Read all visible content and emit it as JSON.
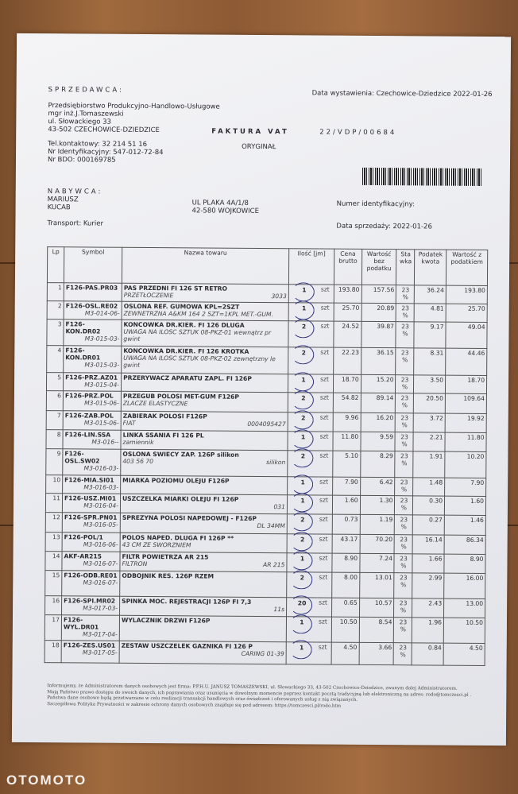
{
  "seller": {
    "heading": "SPRZEDAWCA:",
    "name": "Przedsiębiorstwo Produkcyjno-Handlowo-Usługowe",
    "owner": "mgr inż.J.Tomaszewski",
    "street": "ul. Słowackiego 33",
    "city": "43-502 CZECHOWICE-DZIEDZICE",
    "phone": "Tel.kontaktowy: 32 214 51 16",
    "nip": "Nr Identyfikacyjny: 547-012-72-84",
    "bdo": "Nr BDO: 000169785"
  },
  "issue_date": "Data wystawienia: Czechowice-Dziedzice 2022-01-26",
  "invoice": {
    "title": "FAKTURA VAT",
    "number": "22/VDP/00684",
    "copy": "ORYGINAŁ"
  },
  "buyer": {
    "heading": "NABYWCA:",
    "first_name": "MARIUSZ",
    "last_name": "KUCAB",
    "street": "UL PLAKA 4A/1/8",
    "city": "42-580 WOJKOWICE",
    "id_label": "Numer identyfikacyjny:",
    "transport": "Transport: Kurier",
    "sale_date": "Data sprzedaży: 2022-01-26"
  },
  "table": {
    "headers": [
      "Lp",
      "Symbol",
      "Nazwa towaru",
      "Ilość [jm]",
      "Cena brutto",
      "Wartość bez podatku",
      "Sta wka",
      "Podatek kwota",
      "Wartość z podatkiem"
    ],
    "rows": [
      {
        "lp": "1",
        "symbol": "F126-PAS.PR03",
        "code": "",
        "name": "PAS PRZEDNI FI 126 ST RETRO",
        "desc": "PRZETŁOCZENIE",
        "desc2": "3033",
        "qty": "1",
        "unit": "szt",
        "price": "193.80",
        "net": "157.56",
        "vat": "23 %",
        "tax": "36.24",
        "gross": "193.80"
      },
      {
        "lp": "2",
        "symbol": "F126-OSL.RE02",
        "code": "M3-014-06-",
        "name": "OSLONA REF. GUMOWA KPL=2SZT",
        "desc": "ZEWNETRZNA A&KM 164  2 SZT=1KPL MET.-GUM.",
        "desc2": "",
        "qty": "1",
        "unit": "szt",
        "price": "25.70",
        "net": "20.89",
        "vat": "23 %",
        "tax": "4.81",
        "gross": "25.70"
      },
      {
        "lp": "3",
        "symbol": "F126-KON.DR02",
        "code": "M3-015-03-",
        "name": "KONCOWKA DR.KIER. FI 126 DLUGA",
        "desc": "UWAGA NA ILOSC SZTUK  08-PKZ-01 wewnątrz pr gwint",
        "desc2": "",
        "qty": "2",
        "unit": "szt",
        "price": "24.52",
        "net": "39.87",
        "vat": "23 %",
        "tax": "9.17",
        "gross": "49.04"
      },
      {
        "lp": "4",
        "symbol": "F126-KON.DR01",
        "code": "M3-015-03-",
        "name": "KONCOWKA DR.KIER. FI 126 KROTKA",
        "desc": "UWAGA NA ILOSC SZTUK  08-PKZ-02 zewnętrzny le gwint",
        "desc2": "",
        "qty": "2",
        "unit": "szt",
        "price": "22.23",
        "net": "36.15",
        "vat": "23 %",
        "tax": "8.31",
        "gross": "44.46"
      },
      {
        "lp": "5",
        "symbol": "F126-PRZ.AZ01",
        "code": "M3-015-04-",
        "name": "PRZERYWACZ APARATU ZAPL. FI 126P",
        "desc": "",
        "desc2": "",
        "qty": "1",
        "unit": "szt",
        "price": "18.70",
        "net": "15.20",
        "vat": "23 %",
        "tax": "3.50",
        "gross": "18.70"
      },
      {
        "lp": "6",
        "symbol": "F126-PRZ.POL",
        "code": "M3-015-06-",
        "name": "PRZEGUB POLOSI MET-GUM F126P",
        "desc": "ZLACZE ELASTYCZNE",
        "desc2": "",
        "qty": "2",
        "unit": "szt",
        "price": "54.82",
        "net": "89.14",
        "vat": "23 %",
        "tax": "20.50",
        "gross": "109.64"
      },
      {
        "lp": "7",
        "symbol": "F126-ZAB.POL",
        "code": "M3-015-06-",
        "name": "ZABIERAK POLOSI F126P",
        "desc": "FIAT",
        "desc2": "0004095427",
        "qty": "2",
        "unit": "szt",
        "price": "9.96",
        "net": "16.20",
        "vat": "23 %",
        "tax": "3.72",
        "gross": "19.92"
      },
      {
        "lp": "8",
        "symbol": "F126-LIN.SSA",
        "code": "M3-016--",
        "name": "LINKA SSANIA FI 126 PL",
        "desc": "zamiennik",
        "desc2": "",
        "qty": "1",
        "unit": "szt",
        "price": "11.80",
        "net": "9.59",
        "vat": "23 %",
        "tax": "2.21",
        "gross": "11.80"
      },
      {
        "lp": "9",
        "symbol": "F126-OSL.SW02",
        "code": "M3-016-03-",
        "name": "OSLONA SWIECY ZAP. 126P silikon",
        "desc": "403 56 70",
        "desc2": "silikon",
        "qty": "2",
        "unit": "szt",
        "price": "5.10",
        "net": "8.29",
        "vat": "23 %",
        "tax": "1.91",
        "gross": "10.20"
      },
      {
        "lp": "10",
        "symbol": "F126-MIA.SI01",
        "code": "M3-016-03-",
        "name": "MIARKA POZIOMU OLEJU F126P",
        "desc": "",
        "desc2": "",
        "qty": "1",
        "unit": "szt",
        "price": "7.90",
        "net": "6.42",
        "vat": "23 %",
        "tax": "1.48",
        "gross": "7.90"
      },
      {
        "lp": "11",
        "symbol": "F126-USZ.MI01",
        "code": "M3-016-04-",
        "name": "USZCZELKA MIARKI OLEJU FI 126P",
        "desc": "",
        "desc2": "031",
        "qty": "1",
        "unit": "szt",
        "price": "1.60",
        "net": "1.30",
        "vat": "23 %",
        "tax": "0.30",
        "gross": "1.60"
      },
      {
        "lp": "12",
        "symbol": "F126-SPR.PN01",
        "code": "M3-016-05-",
        "name": "SPREZYNA POLOSI NAPEDOWEJ - F126P",
        "desc": "",
        "desc2": "DL 34MM",
        "qty": "2",
        "unit": "szt",
        "price": "0.73",
        "net": "1.19",
        "vat": "23 %",
        "tax": "0.27",
        "gross": "1.46"
      },
      {
        "lp": "13",
        "symbol": "F126-POL/1",
        "code": "M3-016-06-",
        "name": "POLOS NAPED. DLUGA FI 126P **",
        "desc": "43 CM ZE SWORZNIEM",
        "desc2": "",
        "qty": "2",
        "unit": "szt",
        "price": "43.17",
        "net": "70.20",
        "vat": "23 %",
        "tax": "16.14",
        "gross": "86.34"
      },
      {
        "lp": "14",
        "symbol": "AKF-AR215",
        "code": "M3-016-07-",
        "name": "FILTR POWIETRZA AR 215",
        "desc": "FILTRON",
        "desc2": "AR 215",
        "qty": "1",
        "unit": "szt",
        "price": "8.90",
        "net": "7.24",
        "vat": "23 %",
        "tax": "1.66",
        "gross": "8.90"
      },
      {
        "lp": "15",
        "symbol": "F126-ODB.RE01",
        "code": "M3-016-07-",
        "name": "ODBOJNIK RES. 126P RZEM",
        "desc": "",
        "desc2": "",
        "qty": "2",
        "unit": "szt",
        "price": "8.00",
        "net": "13.01",
        "vat": "23 %",
        "tax": "2.99",
        "gross": "16.00"
      },
      {
        "lp": "16",
        "symbol": "F126-SPI.MR02",
        "code": "M3-017-03-",
        "name": "SPINKA MOC. REJESTRACJI 126P FI 7,3",
        "desc": "",
        "desc2": "11s",
        "qty": "20",
        "unit": "szt",
        "price": "0.65",
        "net": "10.57",
        "vat": "23 %",
        "tax": "2.43",
        "gross": "13.00"
      },
      {
        "lp": "17",
        "symbol": "F126-WYL.DR01",
        "code": "M3-017-04-",
        "name": "WYLACZNIK DRZWI F126P",
        "desc": "",
        "desc2": "",
        "qty": "1",
        "unit": "szt",
        "price": "10.50",
        "net": "8.54",
        "vat": "23 %",
        "tax": "1.96",
        "gross": "10.50"
      },
      {
        "lp": "18",
        "symbol": "F126-ZES.US01",
        "code": "M3-017-05-",
        "name": "ZESTAW USZCZELEK GAZNIKA FI 126 P",
        "desc": "",
        "desc2": "CARING 01-39",
        "qty": "1",
        "unit": "szt",
        "price": "4.50",
        "net": "3.66",
        "vat": "23 %",
        "tax": "0.84",
        "gross": "4.50"
      }
    ]
  },
  "footer": [
    "Informujemy, że Administratorem danych osobowych jest firma: P.P.H.U. JANUSZ TOMASZEWSKI, ul. Słowackiego 33, 43-502 Czechowice-Dziedzice, zwanym dalej Administratorem.",
    "Mają Państwo prawo dostępu do swoich danych, ich poprawiania oraz usunięcia w dowolnym momencie poprzez kontakt pocztą tradycyjną lub elektroniczną na adres: rodo@tomczesci.pl .",
    "Państwa dane osobowe będą przetwarzane w celu realizacji transakcji handlowych oraz świadczeń i oferowanych usług z nią związanych.",
    "Szczegółowa Polityka Prywatności w zakresie ochrony danych osobowych znajduje się pod adresem: https://tomczesci.pl/rodo.htm"
  ],
  "watermark": "OTOMOTO",
  "colors": {
    "ink_circle": "#2b2f7a",
    "paper": "#eceef2",
    "wood": "#8c5a34"
  }
}
